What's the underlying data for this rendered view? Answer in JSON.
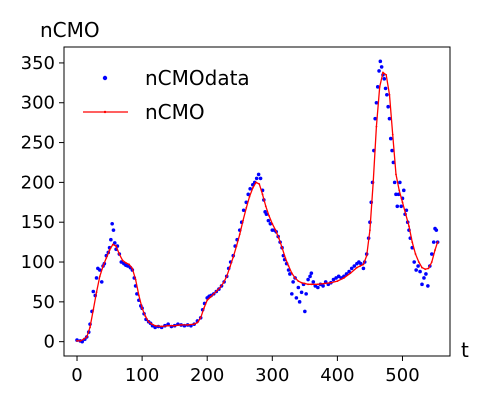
{
  "chart_data": {
    "type": "scatter",
    "title": "",
    "ylabel": "nCMO",
    "xlabel": "t",
    "xlim": [
      -20,
      573
    ],
    "ylim": [
      -18,
      370
    ],
    "xticks": [
      0,
      100,
      200,
      300,
      400,
      500
    ],
    "yticks": [
      0,
      50,
      100,
      150,
      200,
      250,
      300,
      350
    ],
    "grid": false,
    "legend_position": "top-left",
    "series": [
      {
        "name": "nCMOdata",
        "kind": "scatter",
        "color": "#0000ff",
        "points": [
          [
            0,
            2
          ],
          [
            5,
            1
          ],
          [
            8,
            0
          ],
          [
            12,
            3
          ],
          [
            15,
            6
          ],
          [
            18,
            12
          ],
          [
            20,
            22
          ],
          [
            23,
            38
          ],
          [
            25,
            63
          ],
          [
            28,
            58
          ],
          [
            30,
            80
          ],
          [
            32,
            92
          ],
          [
            35,
            90
          ],
          [
            38,
            75
          ],
          [
            40,
            95
          ],
          [
            42,
            98
          ],
          [
            45,
            108
          ],
          [
            48,
            112
          ],
          [
            50,
            118
          ],
          [
            52,
            128
          ],
          [
            54,
            148
          ],
          [
            56,
            140
          ],
          [
            58,
            124
          ],
          [
            60,
            116
          ],
          [
            62,
            120
          ],
          [
            65,
            110
          ],
          [
            68,
            100
          ],
          [
            72,
            98
          ],
          [
            75,
            96
          ],
          [
            78,
            95
          ],
          [
            82,
            93
          ],
          [
            85,
            90
          ],
          [
            88,
            80
          ],
          [
            90,
            70
          ],
          [
            92,
            60
          ],
          [
            95,
            52
          ],
          [
            98,
            45
          ],
          [
            100,
            42
          ],
          [
            103,
            35
          ],
          [
            106,
            28
          ],
          [
            110,
            25
          ],
          [
            113,
            23
          ],
          [
            116,
            20
          ],
          [
            120,
            18
          ],
          [
            125,
            19
          ],
          [
            130,
            18
          ],
          [
            135,
            20
          ],
          [
            140,
            22
          ],
          [
            145,
            19
          ],
          [
            150,
            20
          ],
          [
            155,
            22
          ],
          [
            160,
            21
          ],
          [
            165,
            20
          ],
          [
            170,
            21
          ],
          [
            175,
            20
          ],
          [
            180,
            22
          ],
          [
            185,
            26
          ],
          [
            190,
            30
          ],
          [
            193,
            40
          ],
          [
            196,
            48
          ],
          [
            200,
            55
          ],
          [
            203,
            57
          ],
          [
            206,
            58
          ],
          [
            210,
            60
          ],
          [
            214,
            63
          ],
          [
            218,
            66
          ],
          [
            222,
            70
          ],
          [
            226,
            75
          ],
          [
            230,
            82
          ],
          [
            233,
            92
          ],
          [
            236,
            100
          ],
          [
            240,
            108
          ],
          [
            243,
            120
          ],
          [
            246,
            128
          ],
          [
            250,
            140
          ],
          [
            253,
            150
          ],
          [
            256,
            165
          ],
          [
            260,
            175
          ],
          [
            263,
            185
          ],
          [
            266,
            192
          ],
          [
            270,
            197
          ],
          [
            273,
            200
          ],
          [
            276,
            205
          ],
          [
            279,
            210
          ],
          [
            282,
            205
          ],
          [
            285,
            190
          ],
          [
            287,
            178
          ],
          [
            289,
            163
          ],
          [
            291,
            160
          ],
          [
            294,
            152
          ],
          [
            297,
            148
          ],
          [
            300,
            140
          ],
          [
            303,
            140
          ],
          [
            306,
            138
          ],
          [
            309,
            132
          ],
          [
            312,
            125
          ],
          [
            315,
            118
          ],
          [
            317,
            108
          ],
          [
            319,
            103
          ],
          [
            322,
            98
          ],
          [
            325,
            90
          ],
          [
            327,
            85
          ],
          [
            330,
            60
          ],
          [
            332,
            75
          ],
          [
            335,
            80
          ],
          [
            337,
            55
          ],
          [
            340,
            68
          ],
          [
            342,
            50
          ],
          [
            345,
            62
          ],
          [
            348,
            72
          ],
          [
            350,
            38
          ],
          [
            352,
            60
          ],
          [
            355,
            78
          ],
          [
            358,
            82
          ],
          [
            360,
            86
          ],
          [
            363,
            75
          ],
          [
            366,
            70
          ],
          [
            370,
            68
          ],
          [
            374,
            72
          ],
          [
            378,
            70
          ],
          [
            382,
            75
          ],
          [
            386,
            72
          ],
          [
            390,
            74
          ],
          [
            394,
            78
          ],
          [
            398,
            80
          ],
          [
            402,
            82
          ],
          [
            406,
            80
          ],
          [
            410,
            82
          ],
          [
            414,
            85
          ],
          [
            418,
            88
          ],
          [
            422,
            92
          ],
          [
            426,
            95
          ],
          [
            430,
            98
          ],
          [
            433,
            100
          ],
          [
            436,
            98
          ],
          [
            440,
            92
          ],
          [
            442,
            100
          ],
          [
            445,
            110
          ],
          [
            448,
            130
          ],
          [
            450,
            150
          ],
          [
            452,
            175
          ],
          [
            454,
            200
          ],
          [
            456,
            240
          ],
          [
            458,
            280
          ],
          [
            460,
            300
          ],
          [
            462,
            320
          ],
          [
            464,
            340
          ],
          [
            466,
            352
          ],
          [
            468,
            345
          ],
          [
            470,
            335
          ],
          [
            472,
            330
          ],
          [
            474,
            318
          ],
          [
            476,
            310
          ],
          [
            478,
            295
          ],
          [
            480,
            280
          ],
          [
            482,
            255
          ],
          [
            484,
            240
          ],
          [
            486,
            225
          ],
          [
            488,
            200
          ],
          [
            490,
            185
          ],
          [
            492,
            170
          ],
          [
            494,
            185
          ],
          [
            496,
            200
          ],
          [
            498,
            170
          ],
          [
            500,
            180
          ],
          [
            502,
            190
          ],
          [
            504,
            160
          ],
          [
            506,
            165
          ],
          [
            508,
            150
          ],
          [
            510,
            140
          ],
          [
            512,
            130
          ],
          [
            515,
            118
          ],
          [
            518,
            100
          ],
          [
            521,
            90
          ],
          [
            524,
            95
          ],
          [
            527,
            88
          ],
          [
            530,
            72
          ],
          [
            533,
            80
          ],
          [
            536,
            85
          ],
          [
            539,
            70
          ],
          [
            542,
            95
          ],
          [
            545,
            110
          ],
          [
            548,
            125
          ],
          [
            550,
            142
          ],
          [
            552,
            140
          ],
          [
            554,
            125
          ]
        ]
      },
      {
        "name": "nCMO",
        "kind": "line",
        "color": "#ff0000",
        "points": [
          [
            0,
            1
          ],
          [
            5,
            1
          ],
          [
            10,
            3
          ],
          [
            15,
            6
          ],
          [
            20,
            18
          ],
          [
            25,
            40
          ],
          [
            30,
            62
          ],
          [
            35,
            82
          ],
          [
            40,
            95
          ],
          [
            45,
            105
          ],
          [
            50,
            115
          ],
          [
            55,
            122
          ],
          [
            60,
            120
          ],
          [
            65,
            110
          ],
          [
            70,
            102
          ],
          [
            75,
            99
          ],
          [
            80,
            97
          ],
          [
            85,
            92
          ],
          [
            90,
            78
          ],
          [
            95,
            58
          ],
          [
            100,
            42
          ],
          [
            105,
            32
          ],
          [
            110,
            25
          ],
          [
            115,
            22
          ],
          [
            120,
            20
          ],
          [
            130,
            19
          ],
          [
            140,
            20
          ],
          [
            150,
            20
          ],
          [
            160,
            21
          ],
          [
            170,
            21
          ],
          [
            180,
            22
          ],
          [
            185,
            24
          ],
          [
            190,
            30
          ],
          [
            195,
            42
          ],
          [
            200,
            52
          ],
          [
            205,
            56
          ],
          [
            210,
            60
          ],
          [
            215,
            64
          ],
          [
            220,
            68
          ],
          [
            225,
            74
          ],
          [
            230,
            82
          ],
          [
            235,
            94
          ],
          [
            240,
            106
          ],
          [
            245,
            120
          ],
          [
            250,
            135
          ],
          [
            255,
            152
          ],
          [
            260,
            168
          ],
          [
            265,
            182
          ],
          [
            270,
            193
          ],
          [
            275,
            200
          ],
          [
            280,
            198
          ],
          [
            285,
            185
          ],
          [
            290,
            170
          ],
          [
            295,
            158
          ],
          [
            300,
            148
          ],
          [
            305,
            140
          ],
          [
            310,
            130
          ],
          [
            315,
            118
          ],
          [
            320,
            105
          ],
          [
            325,
            95
          ],
          [
            330,
            86
          ],
          [
            335,
            80
          ],
          [
            340,
            76
          ],
          [
            345,
            74
          ],
          [
            350,
            73
          ],
          [
            355,
            72
          ],
          [
            360,
            72
          ],
          [
            370,
            72
          ],
          [
            380,
            73
          ],
          [
            390,
            74
          ],
          [
            400,
            76
          ],
          [
            410,
            80
          ],
          [
            420,
            86
          ],
          [
            430,
            93
          ],
          [
            435,
            95
          ],
          [
            440,
            97
          ],
          [
            445,
            108
          ],
          [
            450,
            140
          ],
          [
            455,
            200
          ],
          [
            460,
            270
          ],
          [
            465,
            320
          ],
          [
            470,
            338
          ],
          [
            475,
            335
          ],
          [
            480,
            310
          ],
          [
            485,
            260
          ],
          [
            490,
            210
          ],
          [
            495,
            190
          ],
          [
            500,
            175
          ],
          [
            505,
            160
          ],
          [
            510,
            145
          ],
          [
            515,
            125
          ],
          [
            520,
            110
          ],
          [
            525,
            100
          ],
          [
            530,
            93
          ],
          [
            535,
            91
          ],
          [
            540,
            92
          ],
          [
            545,
            100
          ],
          [
            550,
            115
          ],
          [
            554,
            125
          ]
        ]
      }
    ]
  }
}
